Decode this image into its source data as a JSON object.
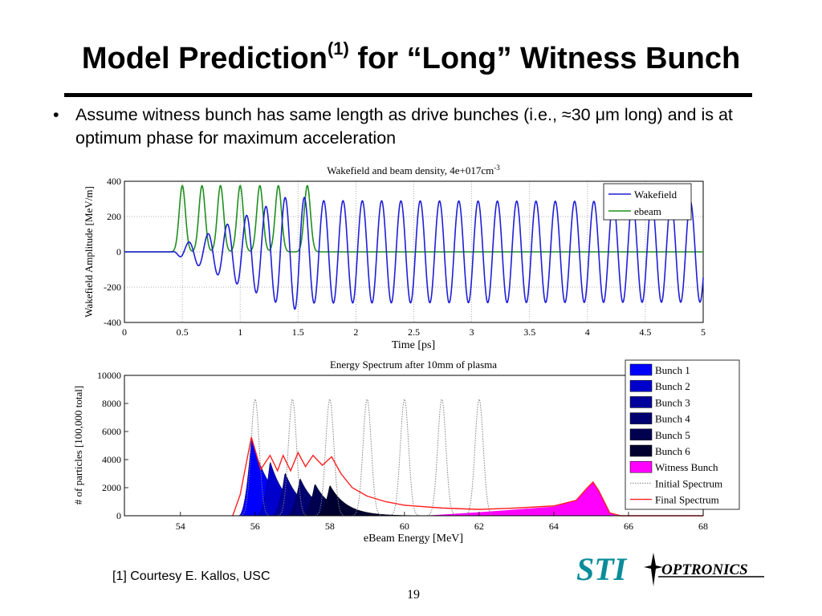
{
  "slide": {
    "title_main": "Model Prediction",
    "title_sup": "(1)",
    "title_rest": " for “Long” Witness Bunch",
    "bullet_mark": "•",
    "bullet_text": "Assume witness bunch has same length as drive bunches (i.e., ≈30 μm long)  and is at optimum phase for maximum acceleration",
    "footnote": "[1] Courtesy E. Kallos, USC",
    "page_number": "19",
    "logo_left": "STI",
    "logo_right": "OPTRONICS"
  },
  "colors": {
    "wakefield": "#1f1fd6",
    "ebeam": "#1f8f1f",
    "final_spectrum": "#ff2020",
    "initial_spectrum": "#808080",
    "witness": "#ff00ff",
    "logo_teal": "#0a8c9a",
    "bunches": [
      "#0000ff",
      "#0000cc",
      "#00009a",
      "#000070",
      "#000050",
      "#000030"
    ]
  },
  "chart_data": [
    {
      "type": "line",
      "title": "Wakefield and beam density,  4e+017cm",
      "title_sup": "-3",
      "xlabel": "Time [ps]",
      "ylabel": "Wakefield Amplitude [MeV/m]",
      "xlim": [
        0,
        5
      ],
      "ylim": [
        -400,
        400
      ],
      "xticks": [
        "0",
        "0.5",
        "1",
        "1.5",
        "2",
        "2.5",
        "3",
        "3.5",
        "4",
        "4.5",
        "5"
      ],
      "yticks": [
        "400",
        "200",
        "0",
        "-200",
        "-400"
      ],
      "grid": true,
      "legend_position": "top-right",
      "series": [
        {
          "name": "Wakefield",
          "period_ps": 0.1667,
          "onset_ps": 0.43,
          "amplitude_growth": [
            {
              "t": 0.5,
              "amp": 40
            },
            {
              "t": 0.7,
              "amp": 95
            },
            {
              "t": 0.85,
              "amp": 145
            },
            {
              "t": 1.0,
              "amp": 190
            },
            {
              "t": 1.2,
              "amp": 250
            },
            {
              "t": 1.35,
              "amp": 300
            },
            {
              "t": 1.5,
              "amp": 330
            },
            {
              "t": 1.6,
              "amp": 290
            },
            {
              "t": 5.0,
              "amp": 285
            }
          ]
        },
        {
          "name": "ebeam",
          "peaks_ps": [
            0.5,
            0.67,
            0.83,
            1.0,
            1.17,
            1.33,
            1.58
          ],
          "peak_value": 375,
          "width_ps": 0.027
        }
      ]
    },
    {
      "type": "area",
      "title": "Energy Spectrum after 10mm of plasma",
      "xlabel": "eBeam Energy [MeV]",
      "ylabel": "# of particles [100,000 total]",
      "xlim": [
        52.5,
        68
      ],
      "ylim": [
        0,
        10000
      ],
      "xticks": [
        "54",
        "56",
        "58",
        "60",
        "62",
        "64",
        "66",
        "68"
      ],
      "yticks": [
        "10000",
        "8000",
        "6000",
        "4000",
        "2000",
        "0"
      ],
      "grid": false,
      "legend_position": "right",
      "series": [
        {
          "name": "Bunch 1",
          "peak_x": 55.9,
          "peak_y": 5600
        },
        {
          "name": "Bunch 2",
          "peak_x": 56.4,
          "peak_y": 3900
        },
        {
          "name": "Bunch 3",
          "peak_x": 56.8,
          "peak_y": 3100
        },
        {
          "name": "Bunch 4",
          "peak_x": 57.2,
          "peak_y": 2700
        },
        {
          "name": "Bunch 5",
          "peak_x": 57.6,
          "peak_y": 2300
        },
        {
          "name": "Bunch 6",
          "peak_x": 58.0,
          "peak_y": 2200
        },
        {
          "name": "Witness Bunch",
          "points": [
            [
              60.5,
              0
            ],
            [
              62,
              250
            ],
            [
              63,
              450
            ],
            [
              64,
              650
            ],
            [
              64.6,
              1100
            ],
            [
              64.9,
              2000
            ],
            [
              65.05,
              2400
            ],
            [
              65.2,
              1800
            ],
            [
              65.5,
              200
            ],
            [
              65.7,
              0
            ]
          ]
        },
        {
          "name": "Initial Spectrum",
          "peaks_x": [
            56.0,
            57.0,
            58.0,
            59.0,
            60.0,
            61.0,
            62.0
          ],
          "peak_y": 8300
        },
        {
          "name": "Final Spectrum",
          "points": [
            [
              55.4,
              0
            ],
            [
              55.6,
              1500
            ],
            [
              55.9,
              5600
            ],
            [
              56.15,
              3300
            ],
            [
              56.4,
              4300
            ],
            [
              56.6,
              3200
            ],
            [
              56.75,
              4300
            ],
            [
              56.95,
              3200
            ],
            [
              57.15,
              4500
            ],
            [
              57.35,
              3500
            ],
            [
              57.55,
              4300
            ],
            [
              57.8,
              3600
            ],
            [
              58.05,
              4200
            ],
            [
              58.3,
              3000
            ],
            [
              58.6,
              2000
            ],
            [
              59.0,
              1400
            ],
            [
              59.5,
              1000
            ],
            [
              60.0,
              750
            ],
            [
              61.0,
              550
            ],
            [
              62.0,
              450
            ],
            [
              63.0,
              550
            ],
            [
              64.0,
              700
            ],
            [
              64.6,
              1100
            ],
            [
              64.9,
              2000
            ],
            [
              65.05,
              2400
            ],
            [
              65.2,
              1800
            ],
            [
              65.5,
              200
            ],
            [
              65.8,
              0
            ],
            [
              68,
              0
            ]
          ]
        }
      ]
    }
  ]
}
